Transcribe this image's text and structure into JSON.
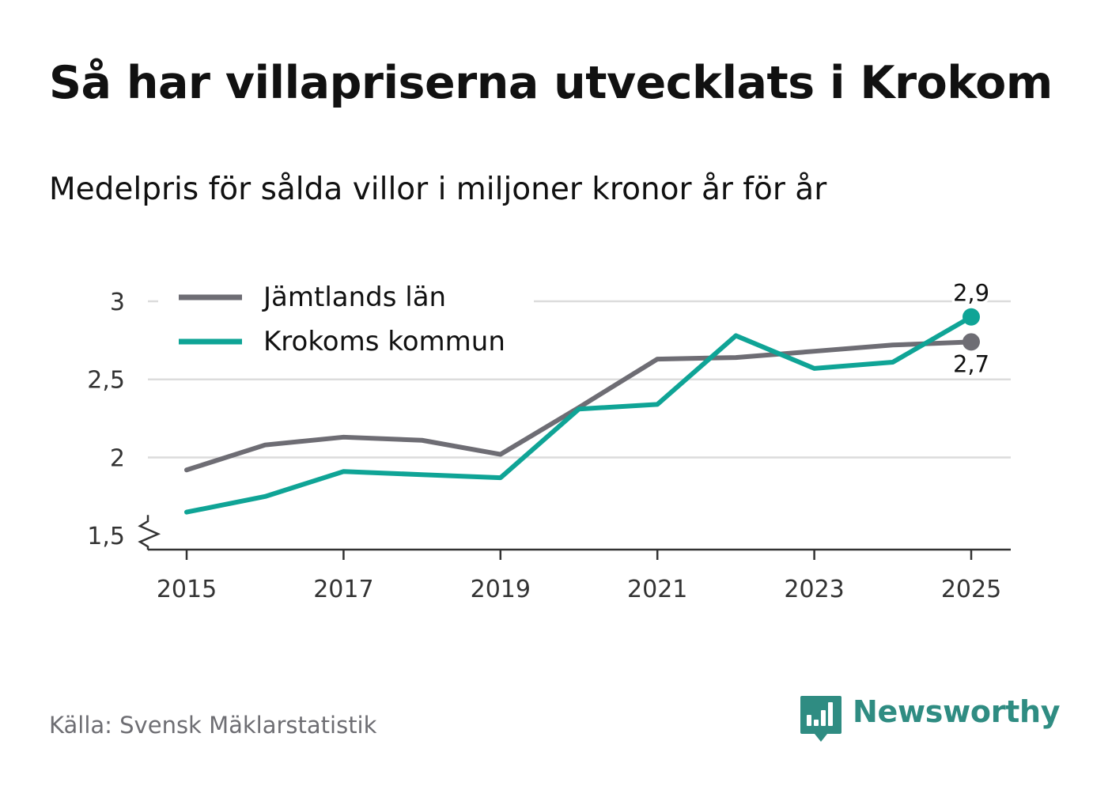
{
  "title": "Så har villapriserna utvecklats i Krokom",
  "subtitle": "Medelpris för sålda villor i miljoner kronor år för år",
  "source": "Källa: Svensk Mäklarstatistik",
  "brand": {
    "name": "Newsworthy",
    "logo_icon": "bar-chart-speech-bubble-icon",
    "color": "#2f8c82"
  },
  "chart_data": {
    "type": "line",
    "title": "Så har villapriserna utvecklats i Krokom",
    "subtitle": "Medelpris för sålda villor i miljoner kronor år för år",
    "xlabel": "",
    "ylabel": "",
    "x": [
      2015,
      2016,
      2017,
      2018,
      2019,
      2020,
      2021,
      2022,
      2023,
      2024,
      2025
    ],
    "x_ticks": [
      2015,
      2017,
      2019,
      2021,
      2023,
      2025
    ],
    "x_tick_labels": [
      "2015",
      "2017",
      "2019",
      "2021",
      "2023",
      "2025"
    ],
    "y_ticks": [
      1.5,
      2,
      2.5,
      3
    ],
    "y_tick_labels": [
      "1,5",
      "2",
      "2,5",
      "3"
    ],
    "ylim": [
      1.41,
      3.0
    ],
    "xlim": [
      2014.75,
      2025.25
    ],
    "grid": true,
    "y_axis_break": true,
    "legend_position": "top-left",
    "series": [
      {
        "name": "Jämtlands län",
        "color": "#6e6d74",
        "values": [
          1.92,
          2.08,
          2.13,
          2.11,
          2.02,
          2.32,
          2.63,
          2.64,
          2.68,
          2.72,
          2.74
        ],
        "end_label": "2,7",
        "end_label_position": "below"
      },
      {
        "name": "Krokoms kommun",
        "color": "#0fa496",
        "values": [
          1.65,
          1.75,
          1.91,
          1.89,
          1.87,
          2.31,
          2.34,
          2.78,
          2.57,
          2.61,
          2.9
        ],
        "end_label": "2,9",
        "end_label_position": "above"
      }
    ]
  }
}
